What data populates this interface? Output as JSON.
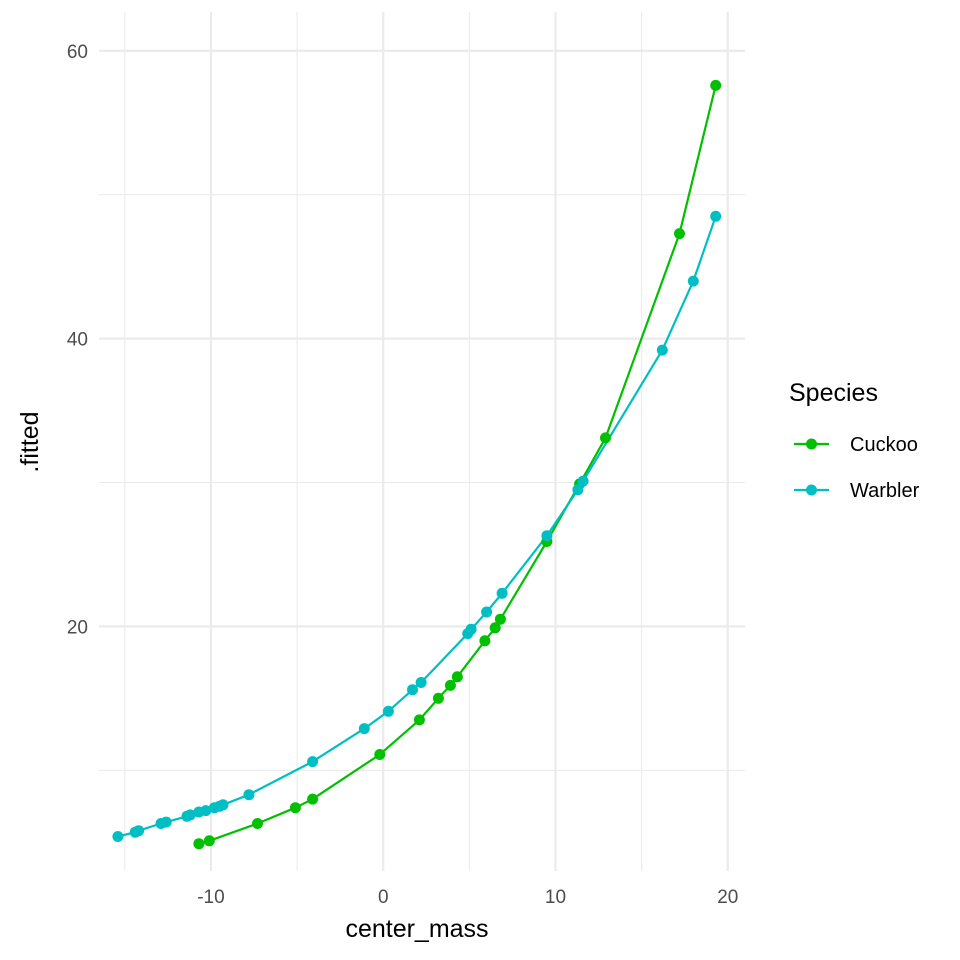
{
  "chart_data": {
    "type": "line",
    "xlabel": "center_mass",
    "ylabel": ".fitted",
    "xlim": [
      -16.5,
      21
    ],
    "ylim": [
      3,
      62.7
    ],
    "x_ticks": [
      -10,
      0,
      10,
      20
    ],
    "x_tick_labels": [
      "-10",
      "0",
      "10",
      "20"
    ],
    "y_ticks": [
      20,
      40,
      60
    ],
    "y_tick_labels": [
      "20",
      "40",
      "60"
    ],
    "x_minor_ticks": [
      -15,
      -5,
      5,
      15
    ],
    "y_minor_ticks": [
      10,
      30,
      50
    ],
    "grid": true,
    "markers": true,
    "legend": {
      "title": "Species",
      "position": "right"
    },
    "series": [
      {
        "name": "Cuckoo",
        "color": "#00c000",
        "points": [
          [
            -10.7,
            4.9
          ],
          [
            -10.1,
            5.1
          ],
          [
            -7.3,
            6.3
          ],
          [
            -5.1,
            7.4
          ],
          [
            -4.1,
            8.0
          ],
          [
            -0.2,
            11.1
          ],
          [
            2.1,
            13.5
          ],
          [
            3.2,
            15.0
          ],
          [
            3.9,
            15.9
          ],
          [
            4.3,
            16.5
          ],
          [
            5.9,
            19.0
          ],
          [
            6.5,
            19.9
          ],
          [
            6.8,
            20.5
          ],
          [
            9.5,
            25.9
          ],
          [
            11.4,
            29.9
          ],
          [
            12.9,
            33.1
          ],
          [
            17.2,
            47.3
          ],
          [
            19.3,
            57.6
          ]
        ]
      },
      {
        "name": "Warbler",
        "color": "#00bfc4",
        "points": [
          [
            -15.4,
            5.4
          ],
          [
            -14.4,
            5.7
          ],
          [
            -14.2,
            5.8
          ],
          [
            -12.9,
            6.3
          ],
          [
            -12.6,
            6.4
          ],
          [
            -11.4,
            6.8
          ],
          [
            -11.2,
            6.9
          ],
          [
            -10.7,
            7.1
          ],
          [
            -10.3,
            7.2
          ],
          [
            -9.8,
            7.4
          ],
          [
            -9.5,
            7.5
          ],
          [
            -9.3,
            7.6
          ],
          [
            -7.8,
            8.3
          ],
          [
            -4.1,
            10.6
          ],
          [
            -1.1,
            12.9
          ],
          [
            0.3,
            14.1
          ],
          [
            1.7,
            15.6
          ],
          [
            2.2,
            16.1
          ],
          [
            4.9,
            19.5
          ],
          [
            5.1,
            19.8
          ],
          [
            6.0,
            21.0
          ],
          [
            6.9,
            22.3
          ],
          [
            9.5,
            26.3
          ],
          [
            11.3,
            29.5
          ],
          [
            11.6,
            30.1
          ],
          [
            16.2,
            39.2
          ],
          [
            18.0,
            44.0
          ],
          [
            19.3,
            48.5
          ]
        ]
      }
    ]
  }
}
